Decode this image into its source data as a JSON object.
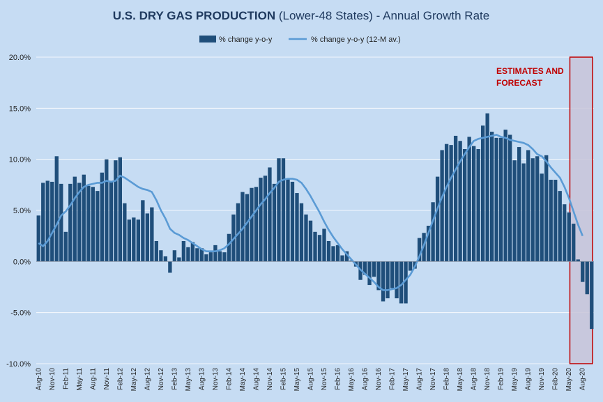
{
  "chart_data": {
    "type": "bar",
    "title_bold": "U.S. DRY GAS PRODUCTION",
    "title_rest": " (Lower-48 States) - Annual Growth Rate",
    "yticks": [
      "20.0%",
      "15.0%",
      "10.0%",
      "5.0%",
      "0.0%",
      "-5.0%",
      "-10.0%"
    ],
    "ylim": [
      -10,
      20
    ],
    "grid": true,
    "legend_position": "top-center",
    "x_tick_labels": [
      "Aug-10",
      "Nov-10",
      "Feb-11",
      "May-11",
      "Aug-11",
      "Nov-11",
      "Feb-12",
      "May-12",
      "Aug-12",
      "Nov-12",
      "Feb-13",
      "May-13",
      "Aug-13",
      "Nov-13",
      "Feb-14",
      "May-14",
      "Aug-14",
      "Nov-14",
      "Feb-15",
      "May-15",
      "Aug-15",
      "Nov-15",
      "Feb-16",
      "May-16",
      "Aug-16",
      "Nov-16",
      "Feb-17",
      "May-17",
      "Aug-17",
      "Nov-17",
      "Feb-18",
      "May-18",
      "Aug-18",
      "Nov-18",
      "Feb-19",
      "May-19",
      "Aug-19",
      "Nov-19",
      "Feb-20",
      "May-20",
      "Aug-20"
    ],
    "forecast_start_month": "Apr-20",
    "annotation_line1": "ESTIMATES AND",
    "annotation_line2": "FORECAST",
    "colors": {
      "bar": "#1f4e7a",
      "line": "#5b9bd5",
      "forecast_box": "#c00000",
      "forecast_fill": "#c8c4d8"
    },
    "series": [
      {
        "name": "% change y-o-y",
        "type": "bar",
        "values": [
          4.5,
          7.7,
          7.9,
          7.8,
          10.3,
          7.6,
          2.9,
          7.6,
          8.3,
          7.7,
          8.5,
          7.4,
          7.3,
          6.9,
          8.7,
          10.0,
          7.8,
          9.9,
          10.2,
          5.7,
          4.1,
          4.3,
          4.1,
          6.0,
          4.7,
          5.3,
          2.0,
          1.1,
          0.5,
          -1.1,
          1.1,
          0.4,
          2.0,
          1.4,
          1.9,
          1.3,
          1.3,
          0.7,
          0.9,
          1.6,
          1.0,
          0.9,
          2.7,
          4.6,
          5.7,
          6.8,
          6.6,
          7.2,
          7.3,
          8.2,
          8.4,
          9.2,
          7.6,
          10.1,
          10.1,
          8.1,
          7.8,
          6.7,
          5.7,
          4.6,
          4.0,
          2.9,
          2.6,
          3.2,
          2.0,
          1.5,
          1.6,
          0.6,
          1.0,
          0.1,
          -0.5,
          -1.8,
          -1.3,
          -2.3,
          -1.5,
          -2.8,
          -3.9,
          -3.6,
          -2.6,
          -3.6,
          -4.1,
          -4.1,
          -0.9,
          -0.7,
          2.3,
          2.8,
          3.5,
          5.8,
          8.3,
          10.9,
          11.5,
          11.4,
          12.3,
          11.8,
          11.0,
          12.2,
          11.3,
          11.0,
          13.3,
          14.5,
          12.7,
          12.1,
          12.1,
          12.9,
          12.4,
          9.9,
          11.2,
          9.6,
          10.9,
          10.1,
          10.3,
          8.6,
          10.4,
          8.0,
          8.0,
          6.9,
          5.6,
          4.8,
          3.7,
          0.2,
          -2.0,
          -3.2,
          -6.6
        ]
      },
      {
        "name": "% change y-o-y (12-M av.)",
        "type": "line",
        "values": [
          1.8,
          1.5,
          2.0,
          2.8,
          3.6,
          4.5,
          4.9,
          5.5,
          6.2,
          6.8,
          7.3,
          7.5,
          7.6,
          7.7,
          7.7,
          7.9,
          7.8,
          7.9,
          8.4,
          8.2,
          7.9,
          7.6,
          7.3,
          7.1,
          7.0,
          6.8,
          6.0,
          5.0,
          4.2,
          3.2,
          2.8,
          2.6,
          2.3,
          2.1,
          1.8,
          1.5,
          1.2,
          1.0,
          1.0,
          1.0,
          1.1,
          1.3,
          1.7,
          2.2,
          2.7,
          3.2,
          3.8,
          4.4,
          5.0,
          5.6,
          6.1,
          6.7,
          7.2,
          7.8,
          8.0,
          8.1,
          8.1,
          8.0,
          7.7,
          7.1,
          6.4,
          5.6,
          4.8,
          3.9,
          3.1,
          2.4,
          1.8,
          1.2,
          0.7,
          0.2,
          -0.3,
          -0.8,
          -1.2,
          -1.6,
          -2.0,
          -2.5,
          -2.8,
          -2.8,
          -2.7,
          -2.6,
          -2.3,
          -1.8,
          -1.3,
          -0.5,
          0.5,
          1.6,
          2.8,
          4.0,
          5.2,
          6.3,
          7.3,
          8.2,
          9.0,
          9.8,
          10.5,
          11.2,
          11.8,
          12.0,
          12.1,
          12.2,
          12.3,
          12.4,
          12.2,
          12.1,
          11.9,
          11.8,
          11.7,
          11.6,
          11.4,
          11.0,
          10.5,
          10.3,
          9.8,
          9.2,
          8.7,
          8.2,
          7.3,
          6.2,
          4.9,
          3.6,
          2.5
        ]
      }
    ]
  }
}
